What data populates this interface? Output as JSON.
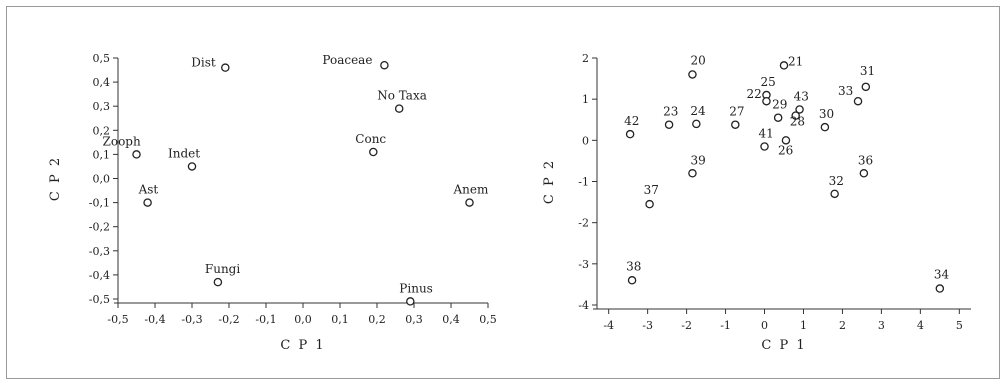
{
  "chart_data": [
    {
      "type": "scatter",
      "xlabel": "C P 1",
      "ylabel": "C P 2",
      "xlim": [
        -0.5,
        0.5
      ],
      "ylim": [
        -0.5,
        0.5
      ],
      "xticks": [
        "-0,5",
        "-0,4",
        "-0,3",
        "-0,2",
        "-0,1",
        "0,0",
        "0,1",
        "0,2",
        "0,3",
        "0,4",
        "0,5"
      ],
      "yticks": [
        "-0,5",
        "-0,4",
        "-0,3",
        "-0,2",
        "-0,1",
        "0,0",
        "0,1",
        "0,2",
        "0,3",
        "0,4",
        "0,5"
      ],
      "points": [
        {
          "label": "Dist",
          "x": -0.21,
          "y": 0.46
        },
        {
          "label": "Poaceae",
          "x": 0.22,
          "y": 0.47
        },
        {
          "label": "No Taxa",
          "x": 0.26,
          "y": 0.29
        },
        {
          "label": "Conc",
          "x": 0.19,
          "y": 0.11
        },
        {
          "label": "Zooph",
          "x": -0.45,
          "y": 0.1
        },
        {
          "label": "Indet",
          "x": -0.3,
          "y": 0.05
        },
        {
          "label": "Ast",
          "x": -0.42,
          "y": -0.1
        },
        {
          "label": "Anem",
          "x": 0.45,
          "y": -0.1
        },
        {
          "label": "Fungi",
          "x": -0.23,
          "y": -0.43
        },
        {
          "label": "Pinus",
          "x": 0.29,
          "y": -0.51
        }
      ]
    },
    {
      "type": "scatter",
      "xlabel": "C P 1",
      "ylabel": "C P 2",
      "xlim": [
        -4.3,
        5.3
      ],
      "ylim": [
        -4,
        2
      ],
      "xticks": [
        "-4",
        "-3",
        "-2",
        "-1",
        "0",
        "1",
        "2",
        "3",
        "4",
        "5"
      ],
      "yticks": [
        "-4",
        "-3",
        "-2",
        "-1",
        "0",
        "1",
        "2"
      ],
      "points": [
        {
          "label": "20",
          "x": -1.85,
          "y": 1.6
        },
        {
          "label": "21",
          "x": 0.5,
          "y": 1.82
        },
        {
          "label": "25",
          "x": 0.05,
          "y": 1.1
        },
        {
          "label": "22",
          "x": 0.05,
          "y": 0.95
        },
        {
          "label": "31",
          "x": 2.6,
          "y": 1.3
        },
        {
          "label": "33",
          "x": 2.4,
          "y": 0.95
        },
        {
          "label": "43",
          "x": 0.9,
          "y": 0.75
        },
        {
          "label": "29",
          "x": 0.35,
          "y": 0.55
        },
        {
          "label": "28",
          "x": 0.8,
          "y": 0.6
        },
        {
          "label": "23",
          "x": -2.45,
          "y": 0.38
        },
        {
          "label": "24",
          "x": -1.75,
          "y": 0.4
        },
        {
          "label": "27",
          "x": -0.75,
          "y": 0.38
        },
        {
          "label": "30",
          "x": 1.55,
          "y": 0.32
        },
        {
          "label": "42",
          "x": -3.45,
          "y": 0.15
        },
        {
          "label": "41",
          "x": 0.0,
          "y": -0.15
        },
        {
          "label": "26",
          "x": 0.55,
          "y": 0.0
        },
        {
          "label": "39",
          "x": -1.85,
          "y": -0.8
        },
        {
          "label": "36",
          "x": 2.55,
          "y": -0.8
        },
        {
          "label": "32",
          "x": 1.8,
          "y": -1.3
        },
        {
          "label": "37",
          "x": -2.95,
          "y": -1.55
        },
        {
          "label": "38",
          "x": -3.4,
          "y": -3.4
        },
        {
          "label": "34",
          "x": 4.5,
          "y": -3.6
        }
      ]
    }
  ]
}
